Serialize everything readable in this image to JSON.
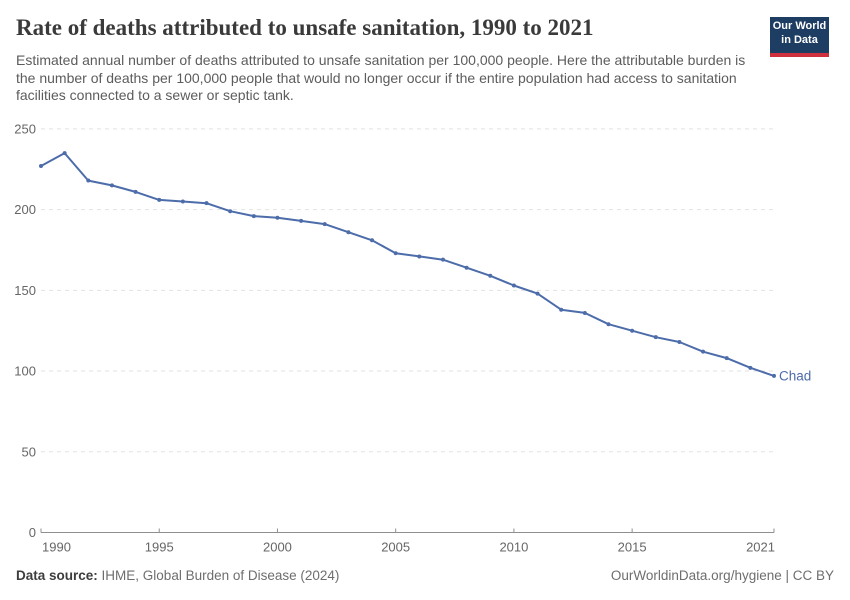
{
  "header": {
    "title": "Rate of deaths attributed to unsafe sanitation, 1990 to 2021",
    "subtitle": "Estimated annual number of deaths attributed to unsafe sanitation per 100,000 people. Here the attributable burden is the number of deaths per 100,000 people that would no longer occur if the entire population had access to sanitation facilities connected to a sewer or septic tank.",
    "logo": {
      "line1": "Our World",
      "line2": "in Data",
      "bg_color": "#1d3d63",
      "stripe_color": "#cf303e"
    }
  },
  "chart_data": {
    "type": "line",
    "title": "Rate of deaths attributed to unsafe sanitation, 1990 to 2021",
    "xlabel": "",
    "ylabel": "",
    "xlim": [
      1990,
      2021
    ],
    "ylim": [
      0,
      250
    ],
    "x_ticks": [
      1990,
      1995,
      2000,
      2005,
      2010,
      2015,
      2021
    ],
    "y_ticks": [
      0,
      50,
      100,
      150,
      200,
      250
    ],
    "grid": "horizontal-dashed",
    "legend_position": "line-end-label",
    "x": [
      1990,
      1991,
      1992,
      1993,
      1994,
      1995,
      1996,
      1997,
      1998,
      1999,
      2000,
      2001,
      2002,
      2003,
      2004,
      2005,
      2006,
      2007,
      2008,
      2009,
      2010,
      2011,
      2012,
      2013,
      2014,
      2015,
      2016,
      2017,
      2018,
      2019,
      2020,
      2021
    ],
    "series": [
      {
        "name": "Chad",
        "color": "#4c6caa",
        "values": [
          227,
          235,
          218,
          215,
          211,
          206,
          205,
          204,
          199,
          196,
          195,
          193,
          191,
          186,
          181,
          173,
          171,
          169,
          164,
          159,
          153,
          148,
          138,
          136,
          129,
          125,
          121,
          118,
          112,
          108,
          102,
          97
        ]
      }
    ],
    "colors": {
      "grid": "#e2e2e2",
      "axis": "#8f8f8f",
      "tick_label": "#666666"
    }
  },
  "footer": {
    "source_label": "Data source:",
    "source_value": "IHME, Global Burden of Disease (2024)",
    "attribution": "OurWorldinData.org/hygiene | CC BY"
  }
}
